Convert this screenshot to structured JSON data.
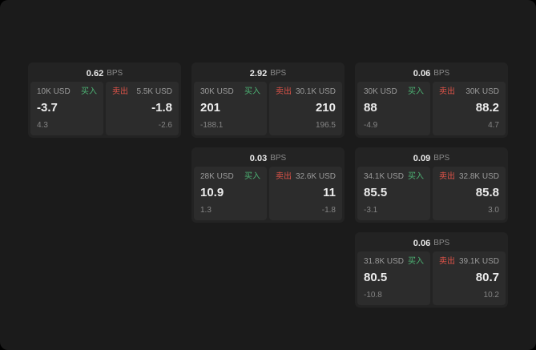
{
  "colors": {
    "background": "#1b1b1b",
    "card_background": "#232323",
    "panel_background": "#2c2c2c",
    "buy": "#4db374",
    "sell": "#df5348",
    "price_text": "#ececec",
    "muted_text": "#8a8a8a"
  },
  "bps_unit": "BPS",
  "buy_label": "买入",
  "sell_label": "卖出",
  "columns": [
    {
      "cards": [
        {
          "bps": "0.62",
          "buy": {
            "amount": "10K USD",
            "price": "-3.7",
            "sub": "4.3"
          },
          "sell": {
            "amount": "5.5K USD",
            "price": "-1.8",
            "sub": "-2.6"
          }
        }
      ]
    },
    {
      "cards": [
        {
          "bps": "2.92",
          "buy": {
            "amount": "30K USD",
            "price": "201",
            "sub": "-188.1"
          },
          "sell": {
            "amount": "30.1K USD",
            "price": "210",
            "sub": "196.5"
          }
        },
        {
          "bps": "0.03",
          "buy": {
            "amount": "28K USD",
            "price": "10.9",
            "sub": "1.3"
          },
          "sell": {
            "amount": "32.6K USD",
            "price": "11",
            "sub": "-1.8"
          }
        }
      ]
    },
    {
      "cards": [
        {
          "bps": "0.06",
          "buy": {
            "amount": "30K USD",
            "price": "88",
            "sub": "-4.9"
          },
          "sell": {
            "amount": "30K USD",
            "price": "88.2",
            "sub": "4.7"
          }
        },
        {
          "bps": "0.09",
          "buy": {
            "amount": "34.1K USD",
            "price": "85.5",
            "sub": "-3.1"
          },
          "sell": {
            "amount": "32.8K USD",
            "price": "85.8",
            "sub": "3.0"
          }
        },
        {
          "bps": "0.06",
          "buy": {
            "amount": "31.8K USD",
            "price": "80.5",
            "sub": "-10.8"
          },
          "sell": {
            "amount": "39.1K USD",
            "price": "80.7",
            "sub": "10.2"
          }
        }
      ]
    }
  ]
}
